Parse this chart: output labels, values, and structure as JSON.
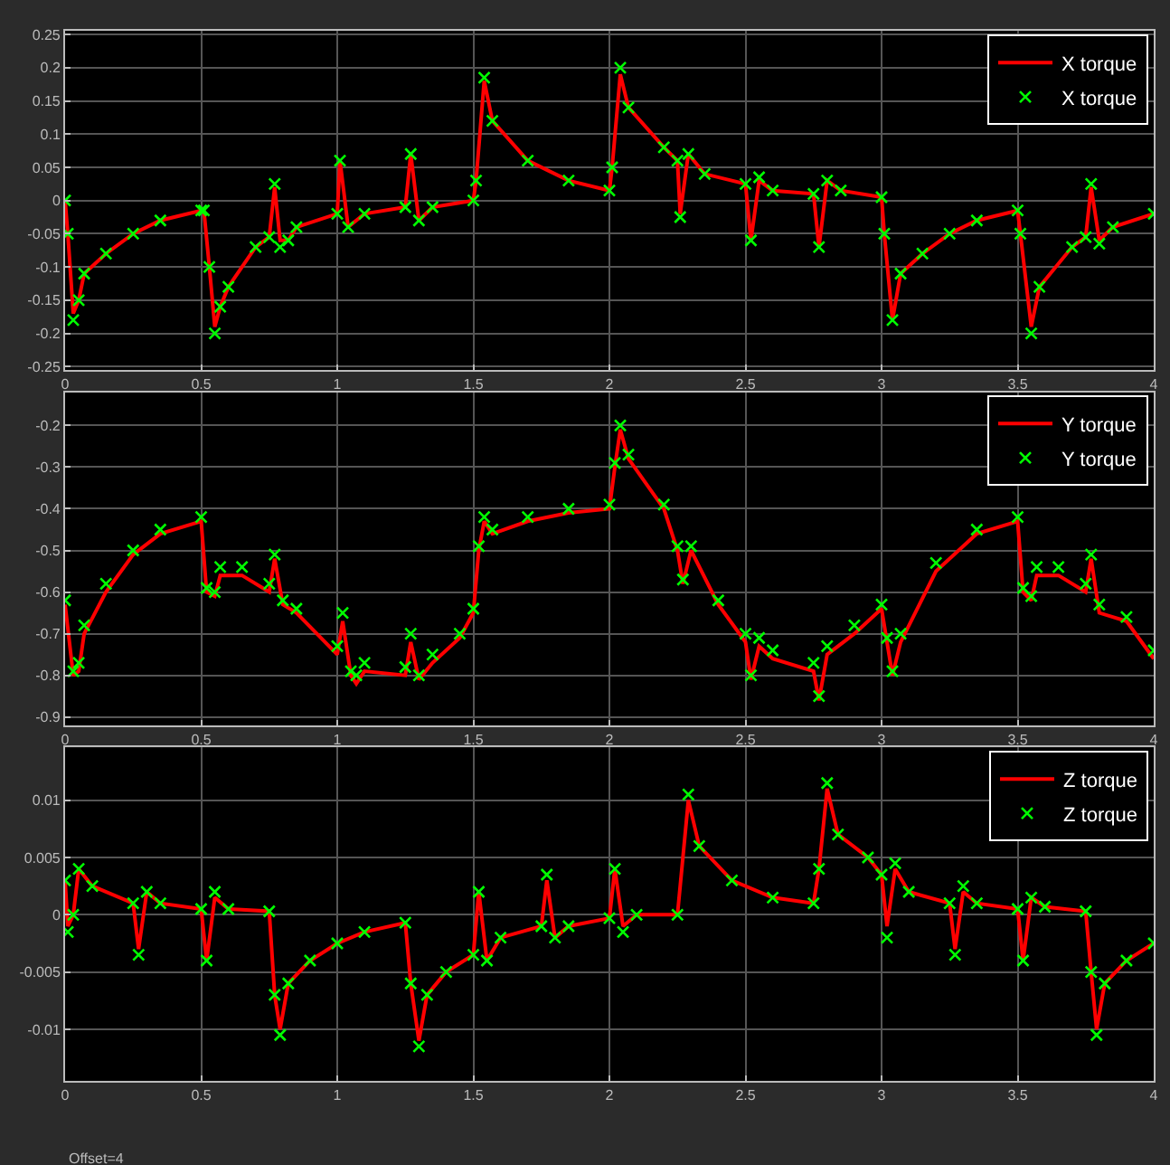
{
  "chart_data": [
    {
      "type": "line",
      "xlim": [
        0,
        4
      ],
      "xticks": [
        0,
        0.5,
        1,
        1.5,
        2,
        2.5,
        3,
        3.5,
        4
      ],
      "ylim": [
        -0.255,
        0.255
      ],
      "yticks": [
        -0.25,
        -0.2,
        -0.15,
        -0.1,
        -0.05,
        0,
        0.05,
        0.1,
        0.15,
        0.2,
        0.25
      ],
      "grid": true,
      "legend": "top right",
      "x": [
        0,
        0.01,
        0.03,
        0.05,
        0.07,
        0.15,
        0.25,
        0.35,
        0.5,
        0.51,
        0.53,
        0.55,
        0.57,
        0.6,
        0.7,
        0.75,
        0.77,
        0.79,
        0.82,
        0.85,
        1.0,
        1.01,
        1.04,
        1.1,
        1.25,
        1.27,
        1.3,
        1.35,
        1.5,
        1.51,
        1.54,
        1.57,
        1.7,
        1.85,
        2.0,
        2.01,
        2.04,
        2.07,
        2.2,
        2.25,
        2.26,
        2.29,
        2.35,
        2.5,
        2.52,
        2.55,
        2.6,
        2.75,
        2.77,
        2.8,
        2.85,
        3.0,
        3.01,
        3.04,
        3.07,
        3.15,
        3.25,
        3.35,
        3.5,
        3.51,
        3.55,
        3.58,
        3.7,
        3.75,
        3.77,
        3.8,
        3.85,
        4.0
      ],
      "series": [
        {
          "name": "X torque",
          "marker": "none",
          "color": "#ff0000",
          "values": [
            0.0,
            -0.05,
            -0.17,
            -0.15,
            -0.11,
            -0.08,
            -0.05,
            -0.03,
            -0.015,
            -0.015,
            -0.1,
            -0.19,
            -0.16,
            -0.13,
            -0.07,
            -0.055,
            0.02,
            -0.06,
            -0.06,
            -0.04,
            -0.02,
            0.06,
            -0.04,
            -0.02,
            -0.01,
            0.07,
            -0.03,
            -0.01,
            0.0,
            0.03,
            0.18,
            0.12,
            0.06,
            0.03,
            0.015,
            0.05,
            0.19,
            0.14,
            0.08,
            0.06,
            -0.02,
            0.07,
            0.04,
            0.025,
            -0.06,
            0.03,
            0.015,
            0.01,
            -0.07,
            0.03,
            0.015,
            0.005,
            -0.05,
            -0.18,
            -0.11,
            -0.08,
            -0.05,
            -0.03,
            -0.015,
            -0.05,
            -0.19,
            -0.13,
            -0.07,
            -0.055,
            0.02,
            -0.06,
            -0.04,
            -0.02
          ]
        },
        {
          "name": "X torque",
          "type": "scatter",
          "marker": "cross",
          "color": "#00ff00",
          "values": [
            0.0,
            -0.05,
            -0.18,
            -0.15,
            -0.11,
            -0.08,
            -0.05,
            -0.03,
            -0.015,
            -0.015,
            -0.1,
            -0.2,
            -0.16,
            -0.13,
            -0.07,
            -0.055,
            0.025,
            -0.07,
            -0.06,
            -0.04,
            -0.02,
            0.06,
            -0.04,
            -0.02,
            -0.01,
            0.07,
            -0.03,
            -0.01,
            0.0,
            0.03,
            0.185,
            0.12,
            0.06,
            0.03,
            0.015,
            0.05,
            0.2,
            0.14,
            0.08,
            0.06,
            -0.025,
            0.07,
            0.04,
            0.025,
            -0.06,
            0.035,
            0.015,
            0.01,
            -0.07,
            0.03,
            0.015,
            0.005,
            -0.05,
            -0.18,
            -0.11,
            -0.08,
            -0.05,
            -0.03,
            -0.015,
            -0.05,
            -0.2,
            -0.13,
            -0.07,
            -0.055,
            0.025,
            -0.065,
            -0.04,
            -0.02
          ]
        }
      ]
    },
    {
      "type": "line",
      "xlim": [
        0,
        4
      ],
      "xticks": [
        0,
        0.5,
        1,
        1.5,
        2,
        2.5,
        3,
        3.5,
        4
      ],
      "ylim": [
        -0.92,
        -0.12
      ],
      "yticks": [
        -0.9,
        -0.8,
        -0.7,
        -0.6,
        -0.5,
        -0.4,
        -0.3,
        -0.2
      ],
      "grid": true,
      "legend": "top right",
      "x": [
        0,
        0.03,
        0.05,
        0.07,
        0.15,
        0.25,
        0.35,
        0.5,
        0.52,
        0.55,
        0.57,
        0.65,
        0.75,
        0.77,
        0.8,
        0.85,
        1.0,
        1.02,
        1.05,
        1.07,
        1.1,
        1.25,
        1.27,
        1.3,
        1.35,
        1.45,
        1.5,
        1.52,
        1.54,
        1.57,
        1.7,
        1.85,
        2.0,
        2.02,
        2.04,
        2.07,
        2.2,
        2.25,
        2.27,
        2.3,
        2.4,
        2.5,
        2.52,
        2.55,
        2.6,
        2.75,
        2.77,
        2.8,
        2.9,
        3.0,
        3.02,
        3.04,
        3.07,
        3.2,
        3.35,
        3.5,
        3.52,
        3.55,
        3.57,
        3.65,
        3.75,
        3.77,
        3.8,
        3.9,
        4.0
      ],
      "series": [
        {
          "name": "Y torque",
          "marker": "none",
          "color": "#ff0000",
          "values": [
            -0.63,
            -0.8,
            -0.79,
            -0.7,
            -0.6,
            -0.51,
            -0.46,
            -0.43,
            -0.6,
            -0.61,
            -0.56,
            -0.56,
            -0.6,
            -0.52,
            -0.63,
            -0.65,
            -0.75,
            -0.67,
            -0.8,
            -0.82,
            -0.79,
            -0.8,
            -0.72,
            -0.81,
            -0.77,
            -0.71,
            -0.65,
            -0.5,
            -0.43,
            -0.46,
            -0.43,
            -0.41,
            -0.4,
            -0.3,
            -0.21,
            -0.28,
            -0.4,
            -0.5,
            -0.58,
            -0.5,
            -0.63,
            -0.72,
            -0.81,
            -0.73,
            -0.76,
            -0.79,
            -0.86,
            -0.75,
            -0.7,
            -0.64,
            -0.72,
            -0.8,
            -0.72,
            -0.55,
            -0.46,
            -0.43,
            -0.6,
            -0.62,
            -0.56,
            -0.56,
            -0.6,
            -0.52,
            -0.65,
            -0.67,
            -0.76
          ]
        },
        {
          "name": "Y torque",
          "type": "scatter",
          "marker": "cross",
          "color": "#00ff00",
          "values": [
            -0.62,
            -0.79,
            -0.77,
            -0.68,
            -0.58,
            -0.5,
            -0.45,
            -0.42,
            -0.59,
            -0.6,
            -0.54,
            -0.54,
            -0.58,
            -0.51,
            -0.62,
            -0.64,
            -0.73,
            -0.65,
            -0.79,
            -0.8,
            -0.77,
            -0.78,
            -0.7,
            -0.8,
            -0.75,
            -0.7,
            -0.64,
            -0.49,
            -0.42,
            -0.45,
            -0.42,
            -0.4,
            -0.39,
            -0.29,
            -0.2,
            -0.27,
            -0.39,
            -0.49,
            -0.57,
            -0.49,
            -0.62,
            -0.7,
            -0.8,
            -0.71,
            -0.74,
            -0.77,
            -0.85,
            -0.73,
            -0.68,
            -0.63,
            -0.71,
            -0.79,
            -0.7,
            -0.53,
            -0.45,
            -0.42,
            -0.59,
            -0.61,
            -0.54,
            -0.54,
            -0.58,
            -0.51,
            -0.63,
            -0.66,
            -0.74
          ]
        }
      ]
    },
    {
      "type": "line",
      "xlim": [
        0,
        4
      ],
      "xticks": [
        0,
        0.5,
        1,
        1.5,
        2,
        2.5,
        3,
        3.5,
        4
      ],
      "ylim": [
        -0.0145,
        0.0146
      ],
      "yticks": [
        -0.01,
        -0.005,
        0,
        0.005,
        0.01
      ],
      "grid": true,
      "legend": "top right",
      "annotations": [
        "Offset=4"
      ],
      "x": [
        0,
        0.01,
        0.03,
        0.05,
        0.1,
        0.25,
        0.27,
        0.3,
        0.35,
        0.5,
        0.52,
        0.55,
        0.6,
        0.75,
        0.77,
        0.79,
        0.82,
        0.9,
        1.0,
        1.1,
        1.25,
        1.27,
        1.3,
        1.33,
        1.4,
        1.5,
        1.52,
        1.55,
        1.6,
        1.75,
        1.77,
        1.8,
        1.85,
        2.0,
        2.02,
        2.05,
        2.1,
        2.25,
        2.29,
        2.33,
        2.45,
        2.6,
        2.75,
        2.77,
        2.8,
        2.84,
        2.95,
        3.0,
        3.02,
        3.05,
        3.1,
        3.25,
        3.27,
        3.3,
        3.35,
        3.5,
        3.52,
        3.55,
        3.6,
        3.75,
        3.77,
        3.79,
        3.82,
        3.9,
        4.0
      ],
      "series": [
        {
          "name": "Z torque",
          "marker": "none",
          "color": "#ff0000",
          "values": [
            0.003,
            -0.001,
            0.0,
            0.004,
            0.0025,
            0.001,
            -0.003,
            0.002,
            0.001,
            0.0005,
            -0.004,
            0.0015,
            0.0005,
            0.0003,
            -0.007,
            -0.01,
            -0.006,
            -0.004,
            -0.0025,
            -0.0015,
            -0.0007,
            -0.006,
            -0.011,
            -0.007,
            -0.005,
            -0.0035,
            0.002,
            -0.004,
            -0.002,
            -0.001,
            0.003,
            -0.002,
            -0.001,
            -0.0003,
            0.004,
            -0.001,
            0.0,
            0.0,
            0.01,
            0.006,
            0.003,
            0.0015,
            0.001,
            0.004,
            0.011,
            0.007,
            0.005,
            0.0035,
            -0.001,
            0.004,
            0.002,
            0.001,
            -0.003,
            0.002,
            0.001,
            0.0005,
            -0.004,
            0.0015,
            0.0007,
            0.0003,
            -0.005,
            -0.01,
            -0.006,
            -0.004,
            -0.0025
          ]
        },
        {
          "name": "Z torque",
          "type": "scatter",
          "marker": "cross",
          "color": "#00ff00",
          "values": [
            0.003,
            -0.0015,
            0.0,
            0.004,
            0.0025,
            0.001,
            -0.0035,
            0.002,
            0.001,
            0.0005,
            -0.004,
            0.002,
            0.0005,
            0.0003,
            -0.007,
            -0.0105,
            -0.006,
            -0.004,
            -0.0025,
            -0.0015,
            -0.0007,
            -0.006,
            -0.0115,
            -0.007,
            -0.005,
            -0.0035,
            0.002,
            -0.004,
            -0.002,
            -0.001,
            0.0035,
            -0.002,
            -0.001,
            -0.0003,
            0.004,
            -0.0015,
            0.0,
            0.0,
            0.0105,
            0.006,
            0.003,
            0.0015,
            0.001,
            0.004,
            0.0115,
            0.007,
            0.005,
            0.0035,
            -0.002,
            0.0045,
            0.002,
            0.001,
            -0.0035,
            0.0025,
            0.001,
            0.0005,
            -0.004,
            0.0015,
            0.0007,
            0.0003,
            -0.005,
            -0.0105,
            -0.006,
            -0.004,
            -0.0025
          ]
        }
      ]
    }
  ]
}
